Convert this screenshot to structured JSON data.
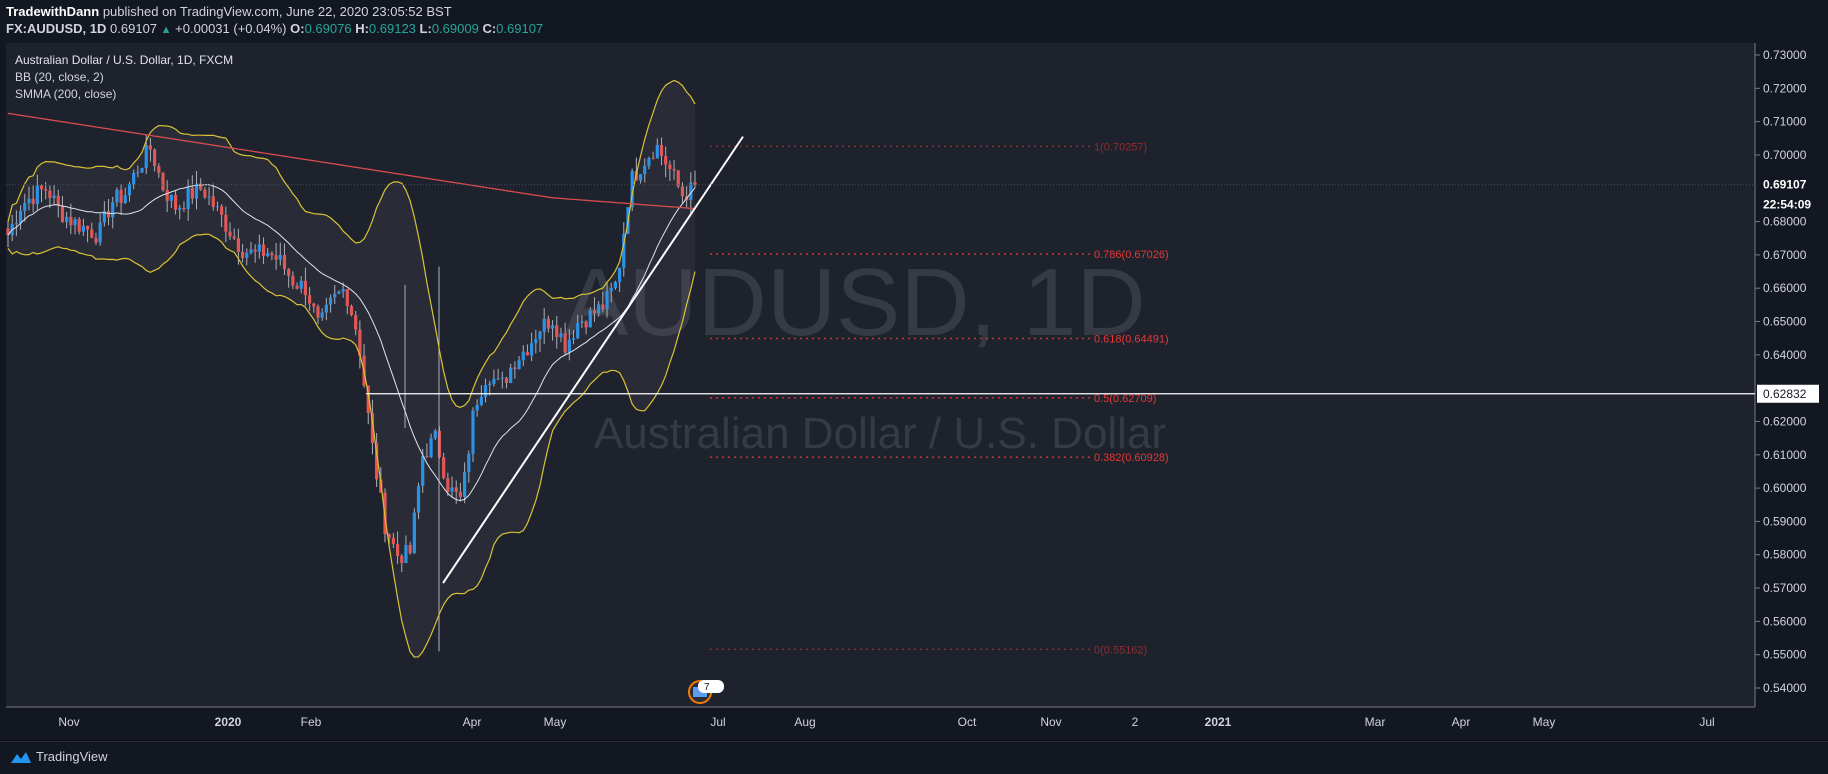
{
  "header": {
    "author": "TradewithDann",
    "published_text": "published on TradingView.com, June 22, 2020 23:05:52 BST",
    "symbol_line": "FX:AUDUSD, 1D",
    "last": "0.69107",
    "change": "+0.00031 (+0.04%)",
    "o_label": "O:",
    "o": "0.69076",
    "h_label": "H:",
    "h": "0.69123",
    "l_label": "L:",
    "l": "0.69009",
    "c_label": "C:",
    "c": "0.69107"
  },
  "legend": {
    "title": "Australian Dollar / U.S. Dollar, 1D, FXCM",
    "ind1": "BB (20, close, 2)",
    "ind2": "SMMA (200, close)"
  },
  "watermark": {
    "big": "AUDUSD, 1D",
    "small": "Australian Dollar / U.S. Dollar"
  },
  "price_axis": {
    "ticks": [
      "0.73000",
      "0.72000",
      "0.71000",
      "0.70000",
      "0.68000",
      "0.67000",
      "0.66000",
      "0.65000",
      "0.64000",
      "0.62000",
      "0.61000",
      "0.60000",
      "0.59000",
      "0.58000",
      "0.57000",
      "0.56000",
      "0.55000",
      "0.54000"
    ],
    "last_price_label": "0.69107",
    "countdown": "22:54:09",
    "hline_label": "0.62832"
  },
  "time_axis": {
    "labels": [
      "Nov",
      "2020",
      "Feb",
      "Apr",
      "May",
      "Jul",
      "Aug",
      "Oct",
      "Nov",
      "2",
      "2021",
      "Mar",
      "Apr",
      "May",
      "Jul"
    ],
    "bold": [
      false,
      true,
      false,
      false,
      false,
      false,
      false,
      false,
      false,
      false,
      true,
      false,
      false,
      false,
      false
    ]
  },
  "fib_levels": [
    {
      "label": "1(0.70257)",
      "value": 0.70257,
      "dim": true
    },
    {
      "label": "0.786(0.67026)",
      "value": 0.67026,
      "dim": false
    },
    {
      "label": "0.618(0.64491)",
      "value": 0.64491,
      "dim": false
    },
    {
      "label": "0.5(0.62709)",
      "value": 0.62709,
      "dim": false
    },
    {
      "label": "0.382(0.60928)",
      "value": 0.60928,
      "dim": false
    },
    {
      "label": "0(0.55162)",
      "value": 0.55162,
      "dim": true
    }
  ],
  "event_badge": "7",
  "footer": {
    "brand": "TradingView"
  },
  "colors": {
    "bg": "#1e222d",
    "up": "#2196f3",
    "down": "#ef5350",
    "bb": "#d9c335",
    "bb_mid": "#e0e3eb",
    "smma": "#d84c4c",
    "fib": "#e53935",
    "trend": "#ffffff"
  },
  "chart_data": {
    "type": "candlestick",
    "title": "Australian Dollar / U.S. Dollar, 1D, FXCM",
    "ylim": [
      0.535,
      0.7345
    ],
    "hline": 0.62832,
    "trendline": [
      [
        0.5715,
        0
      ],
      [
        0.7055,
        1
      ]
    ],
    "ohlc_anchor_points": [
      [
        0.676,
        0.685
      ],
      [
        0.688,
        0.69
      ],
      [
        0.683,
        0.68
      ],
      [
        0.678,
        0.676
      ],
      [
        0.686,
        0.688
      ],
      [
        0.696,
        0.702
      ],
      [
        0.69,
        0.684
      ],
      [
        0.688,
        0.69
      ],
      [
        0.684,
        0.678
      ],
      [
        0.672,
        0.67
      ],
      [
        0.671,
        0.668
      ],
      [
        0.662,
        0.66
      ],
      [
        0.648,
        0.656
      ],
      [
        0.66,
        0.646
      ],
      [
        0.615,
        0.59
      ],
      [
        0.58,
        0.58
      ],
      [
        0.61,
        0.615
      ],
      [
        0.6,
        0.596
      ],
      [
        0.625,
        0.635
      ],
      [
        0.63,
        0.638
      ],
      [
        0.642,
        0.648
      ],
      [
        0.651,
        0.643
      ],
      [
        0.65,
        0.652
      ],
      [
        0.655,
        0.662
      ],
      [
        0.692,
        0.698
      ],
      [
        0.703,
        0.696
      ],
      [
        0.688,
        0.69
      ]
    ]
  }
}
